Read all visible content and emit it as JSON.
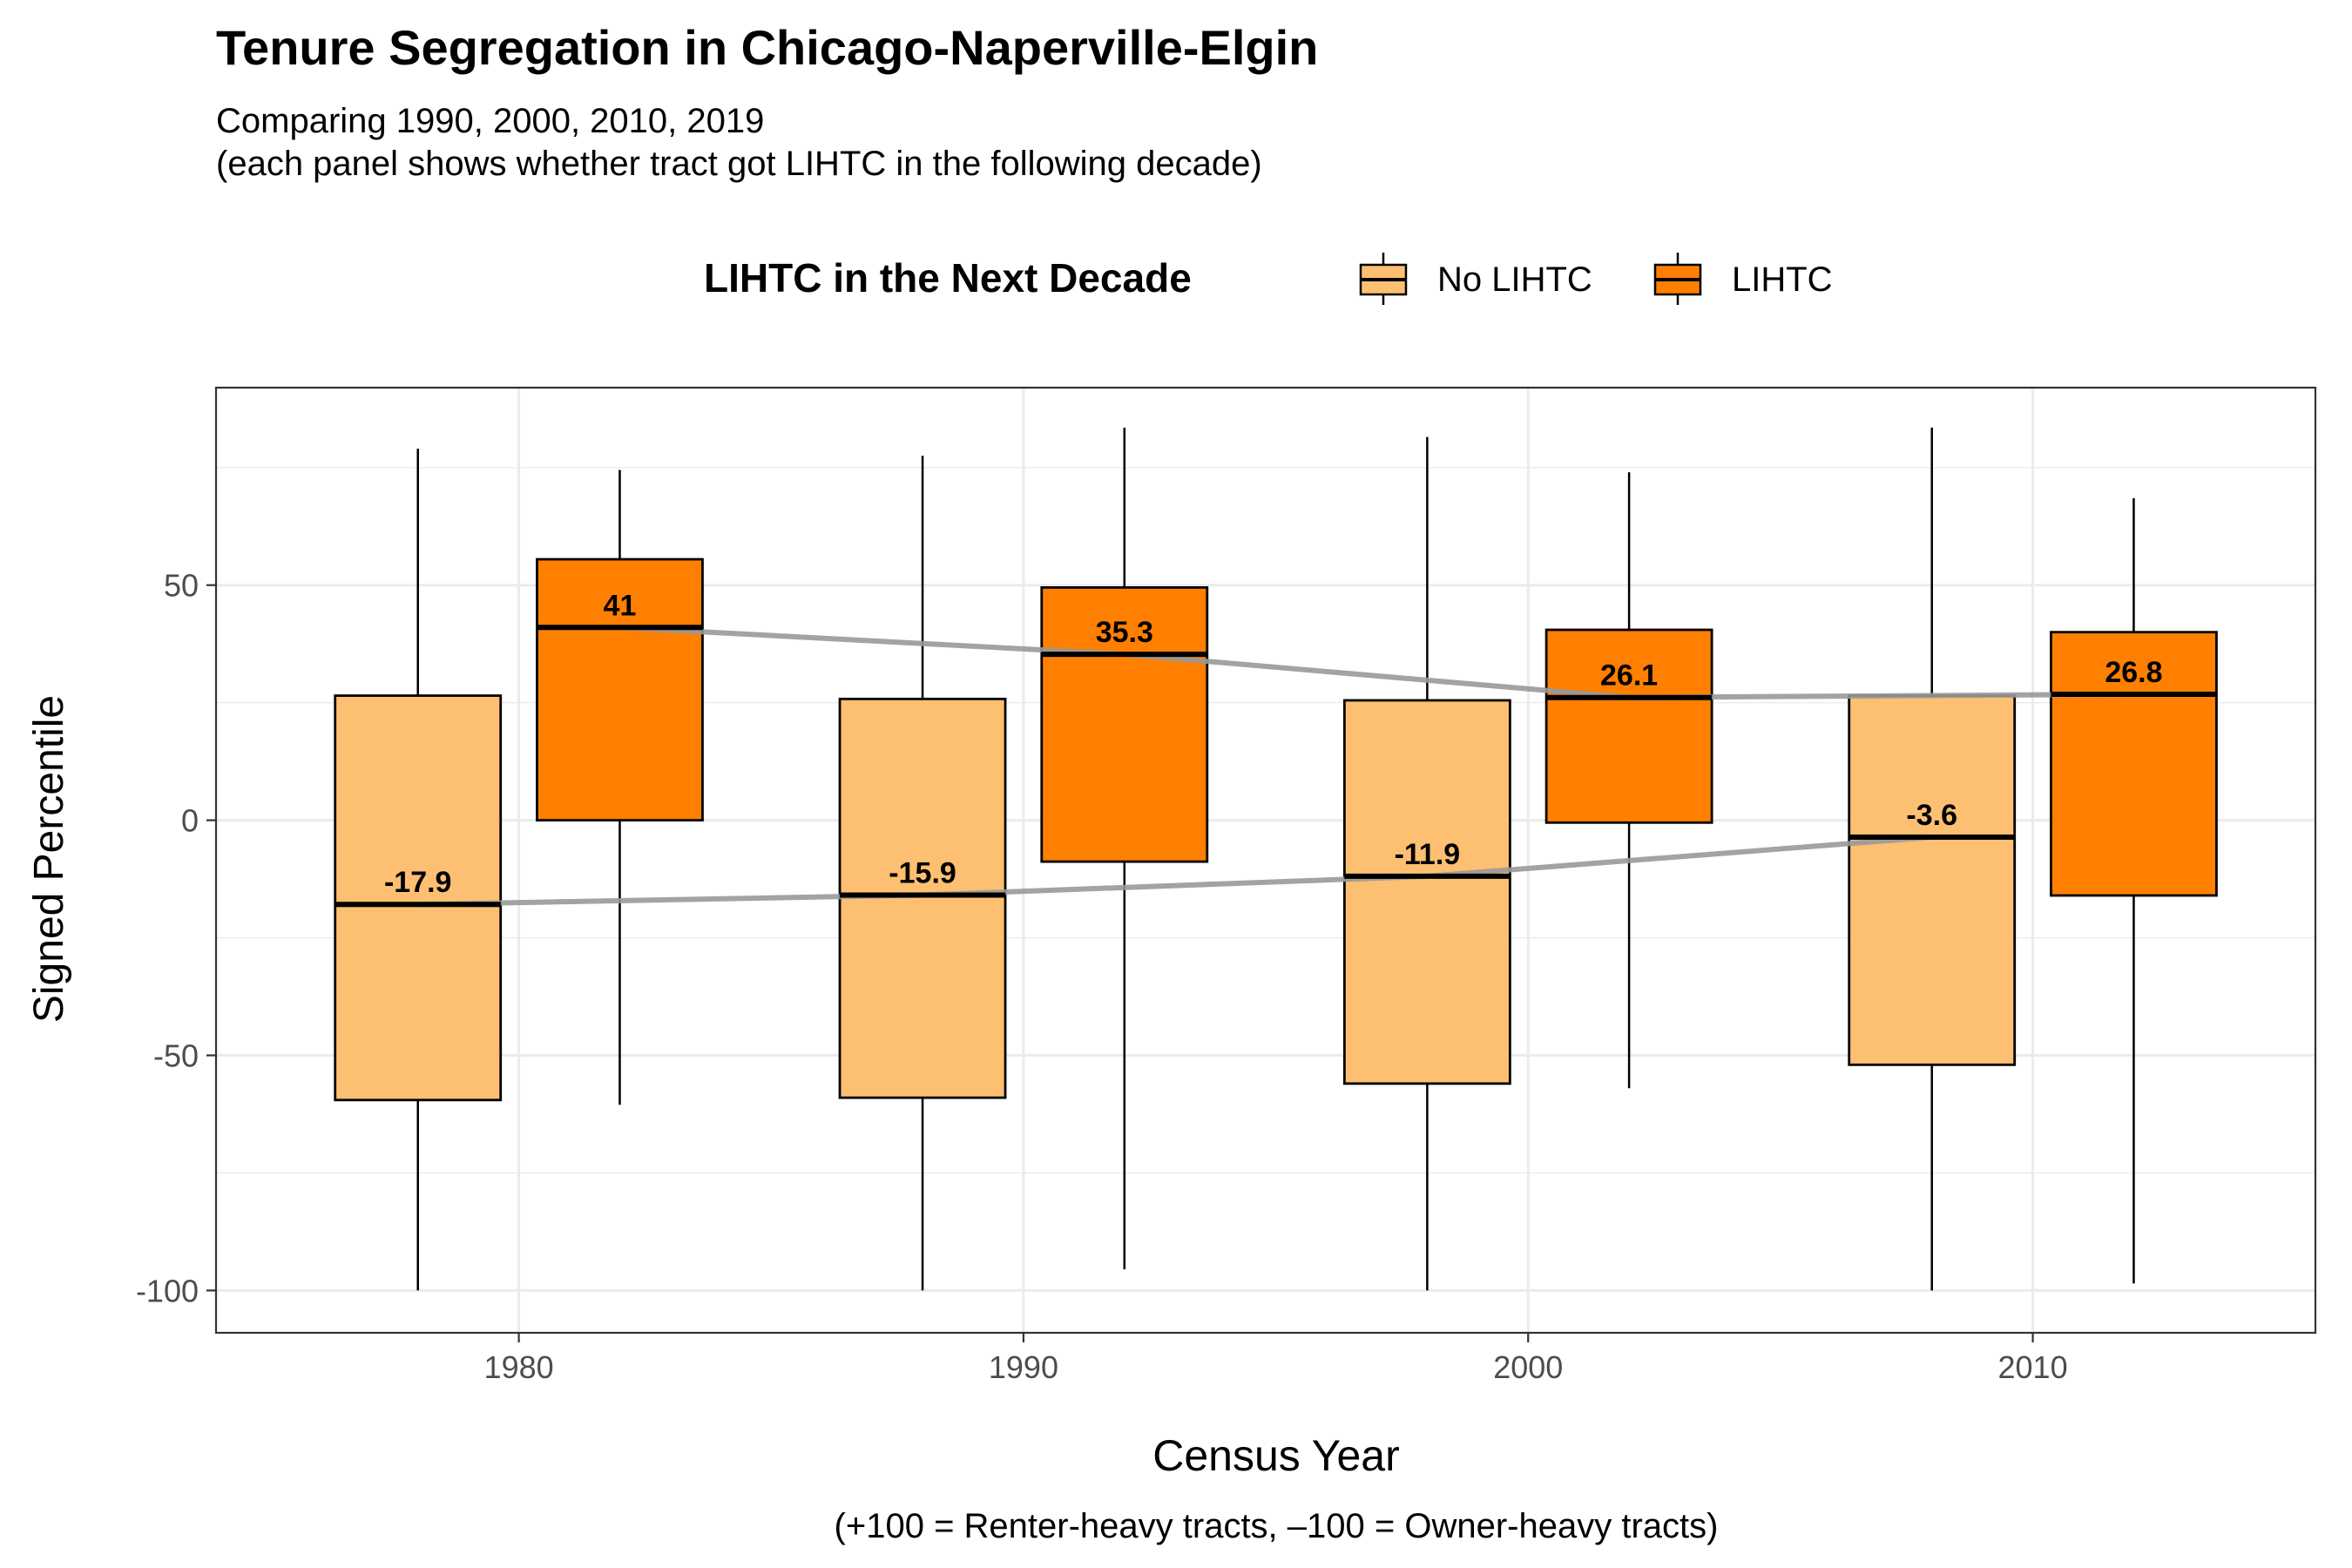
{
  "title": "Tenure Segregation in Chicago-Naperville-Elgin",
  "subtitle_lines": [
    "Comparing 1990, 2000, 2010, 2019",
    "(each panel shows whether tract got LIHTC in the following decade)"
  ],
  "legend": {
    "title": "LIHTC in the Next Decade",
    "entries": [
      "No LIHTC",
      "LIHTC"
    ]
  },
  "colors": {
    "no_lihtc": "#fdbf71",
    "lihtc": "#ff7f00",
    "trend_line": "#999999"
  },
  "chart_data": {
    "type": "boxplot",
    "xlabel": "Census Year",
    "x_caption": "(+100 = Renter-heavy tracts, –100 = Owner-heavy tracts)",
    "ylabel": "Signed Percentile",
    "x_ticks": [
      1980,
      1990,
      2000,
      2010
    ],
    "y_ticks": [
      -100,
      -50,
      0,
      50
    ],
    "xlim": [
      1974,
      2015.6
    ],
    "ylim": [
      -109,
      92
    ],
    "grid": true,
    "legend_position": "top",
    "series": [
      {
        "name": "No LIHTC",
        "boxes": [
          {
            "x": 1978,
            "min": -100,
            "q1": -59.5,
            "median": -17.9,
            "q3": 26.5,
            "max": 79
          },
          {
            "x": 1988,
            "min": -100,
            "q1": -59,
            "median": -15.9,
            "q3": 25.8,
            "max": 77.5
          },
          {
            "x": 1998,
            "min": -100,
            "q1": -56,
            "median": -11.9,
            "q3": 25.5,
            "max": 81.5
          },
          {
            "x": 2008,
            "min": -100,
            "q1": -52,
            "median": -3.6,
            "q3": 26.5,
            "max": 83.5
          }
        ]
      },
      {
        "name": "LIHTC",
        "boxes": [
          {
            "x": 1982,
            "min": -60.5,
            "q1": 0,
            "median": 41,
            "q3": 55.5,
            "max": 74.5
          },
          {
            "x": 1992,
            "min": -95.5,
            "q1": -8.8,
            "median": 35.3,
            "q3": 49.5,
            "max": 83.5
          },
          {
            "x": 2002,
            "min": -57,
            "q1": -0.5,
            "median": 26.1,
            "q3": 40.5,
            "max": 74
          },
          {
            "x": 2012,
            "min": -98.5,
            "q1": -16,
            "median": 26.8,
            "q3": 40,
            "max": 68.5
          }
        ]
      }
    ]
  }
}
